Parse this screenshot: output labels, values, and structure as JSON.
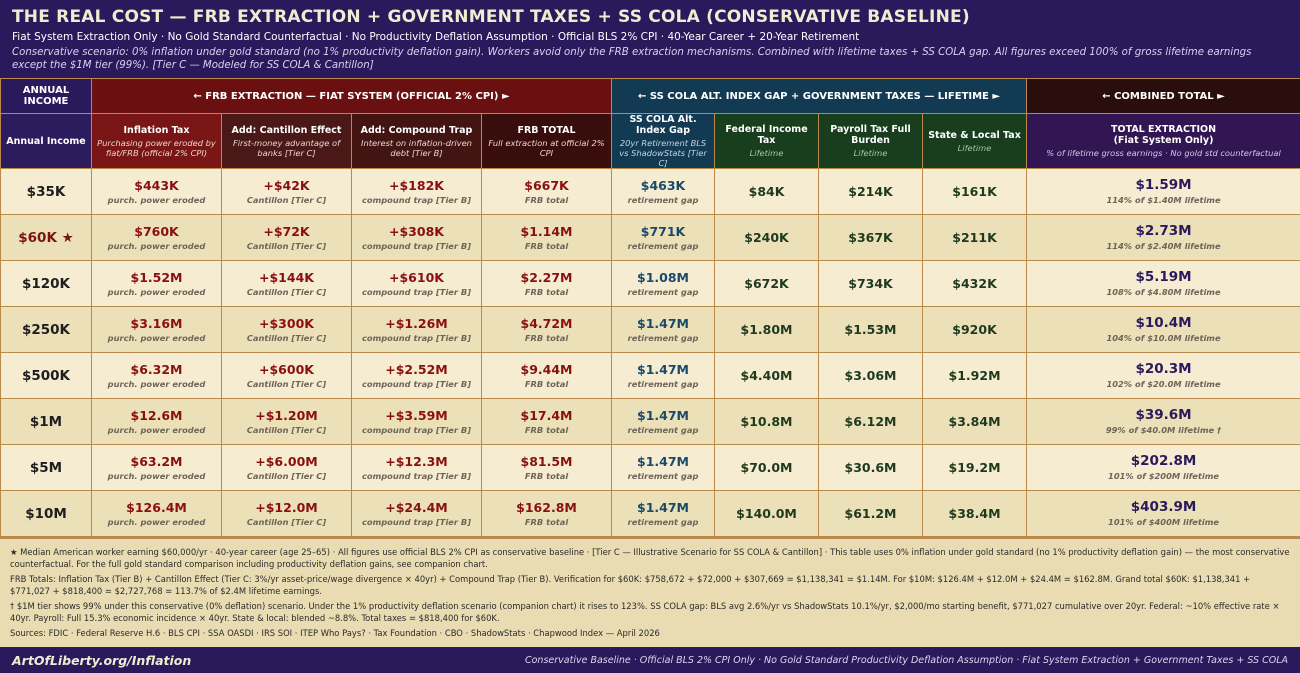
{
  "header": {
    "title": "THE REAL COST — FRB EXTRACTION + GOVERNMENT TAXES + SS COLA (CONSERVATIVE BASELINE)",
    "subtitle": "Fiat System Extraction Only · No Gold Standard Counterfactual · No Productivity Deflation Assumption · Official BLS 2% CPI · 40-Year Career + 20-Year Retirement",
    "description": "Conservative scenario: 0% inflation under gold standard (no 1% productivity deflation gain). Workers avoid only the FRB extraction mechanisms. Combined with lifetime taxes + SS COLA gap. All figures exceed 100% of gross lifetime earnings except the $1M tier (99%). [Tier C — Modeled for SS COLA & Cantillon]"
  },
  "groups": {
    "income": "ANNUAL INCOME",
    "frb": "← FRB EXTRACTION — FIAT SYSTEM (OFFICIAL 2% CPI) ►",
    "ss_tax": "← SS COLA ALT. INDEX GAP + GOVERNMENT TAXES — LIFETIME ►",
    "combined": "← COMBINED TOTAL ►"
  },
  "columns": {
    "income": {
      "title": "Annual Income",
      "desc": ""
    },
    "inflation": {
      "title": "Inflation Tax",
      "desc": "Purchasing power eroded by fiat/FRB (official 2% CPI)"
    },
    "cantillon": {
      "title": "Add: Cantillon Effect",
      "desc": "First-money advantage of banks [Tier C]"
    },
    "compound": {
      "title": "Add: Compound Trap",
      "desc": "Interest on inflation-driven debt [Tier B]"
    },
    "frb_total": {
      "title": "FRB TOTAL",
      "desc": "Full extraction at official 2% CPI"
    },
    "ss": {
      "title": "SS COLA Alt. Index Gap",
      "desc": "20yr Retirement BLS vs ShadowStats [Tier C]"
    },
    "federal": {
      "title": "Federal Income Tax",
      "desc": "Lifetime"
    },
    "payroll": {
      "title": "Payroll Tax Full Burden",
      "desc": "Lifetime"
    },
    "state": {
      "title": "State & Local Tax",
      "desc": "Lifetime"
    },
    "total": {
      "title": "TOTAL EXTRACTION",
      "title2": "(Fiat System Only)",
      "desc": "% of lifetime gross earnings · No gold std counterfactual"
    }
  },
  "sublabels": {
    "inflation": "purch. power eroded",
    "cantillon": "Cantillon [Tier C]",
    "compound": "compound trap [Tier B]",
    "frb_total": "FRB total",
    "ss": "retirement gap"
  },
  "rows": [
    {
      "income": "$35K",
      "inflation": "$443K",
      "cantillon": "+$42K",
      "compound": "+$182K",
      "frb_total": "$667K",
      "ss": "$463K",
      "federal": "$84K",
      "payroll": "$214K",
      "state": "$161K",
      "total": "$1.59M",
      "total_note": "114% of $1.40M lifetime"
    },
    {
      "income": "$60K ★",
      "inflation": "$760K",
      "cantillon": "+$72K",
      "compound": "+$308K",
      "frb_total": "$1.14M",
      "ss": "$771K",
      "federal": "$240K",
      "payroll": "$367K",
      "state": "$211K",
      "total": "$2.73M",
      "total_note": "114% of $2.40M lifetime"
    },
    {
      "income": "$120K",
      "inflation": "$1.52M",
      "cantillon": "+$144K",
      "compound": "+$610K",
      "frb_total": "$2.27M",
      "ss": "$1.08M",
      "federal": "$672K",
      "payroll": "$734K",
      "state": "$432K",
      "total": "$5.19M",
      "total_note": "108% of $4.80M lifetime"
    },
    {
      "income": "$250K",
      "inflation": "$3.16M",
      "cantillon": "+$300K",
      "compound": "+$1.26M",
      "frb_total": "$4.72M",
      "ss": "$1.47M",
      "federal": "$1.80M",
      "payroll": "$1.53M",
      "state": "$920K",
      "total": "$10.4M",
      "total_note": "104% of $10.0M lifetime"
    },
    {
      "income": "$500K",
      "inflation": "$6.32M",
      "cantillon": "+$600K",
      "compound": "+$2.52M",
      "frb_total": "$9.44M",
      "ss": "$1.47M",
      "federal": "$4.40M",
      "payroll": "$3.06M",
      "state": "$1.92M",
      "total": "$20.3M",
      "total_note": "102% of $20.0M lifetime"
    },
    {
      "income": "$1M",
      "inflation": "$12.6M",
      "cantillon": "+$1.20M",
      "compound": "+$3.59M",
      "frb_total": "$17.4M",
      "ss": "$1.47M",
      "federal": "$10.8M",
      "payroll": "$6.12M",
      "state": "$3.84M",
      "total": "$39.6M",
      "total_note": "99% of $40.0M lifetime †"
    },
    {
      "income": "$5M",
      "inflation": "$63.2M",
      "cantillon": "+$6.00M",
      "compound": "+$12.3M",
      "frb_total": "$81.5M",
      "ss": "$1.47M",
      "federal": "$70.0M",
      "payroll": "$30.6M",
      "state": "$19.2M",
      "total": "$202.8M",
      "total_note": "101% of $200M lifetime"
    },
    {
      "income": "$10M",
      "inflation": "$126.4M",
      "cantillon": "+$12.0M",
      "compound": "+$24.4M",
      "frb_total": "$162.8M",
      "ss": "$1.47M",
      "federal": "$140.0M",
      "payroll": "$61.2M",
      "state": "$38.4M",
      "total": "$403.9M",
      "total_note": "101% of $400M lifetime"
    }
  ],
  "notes": [
    "★ Median American worker earning $60,000/yr · 40-year career (age 25–65) · All figures use official BLS 2% CPI as conservative baseline · [Tier C — Illustrative Scenario for SS COLA & Cantillon] · This table uses 0% inflation under gold standard (no 1% productivity deflation gain) — the most conservative counterfactual. For the full gold standard comparison including productivity deflation gains, see companion chart.",
    "FRB Totals: Inflation Tax (Tier B) + Cantillon Effect (Tier C: 3%/yr asset-price/wage divergence × 40yr) + Compound Trap (Tier B). Verification for $60K: $758,672 + $72,000 + $307,669 = $1,138,341 = $1.14M. For $10M: $126.4M + $12.0M + $24.4M = $162.8M. Grand total $60K: $1,138,341 + $771,027 + $818,400 = $2,727,768 = 113.7% of $2.4M lifetime earnings.",
    "† $1M tier shows 99% under this conservative (0% deflation) scenario. Under the 1% productivity deflation scenario (companion chart) it rises to 123%. SS COLA gap: BLS avg 2.6%/yr vs ShadowStats 10.1%/yr, $2,000/mo starting benefit, $771,027 cumulative over 20yr. Federal: ~10% effective rate × 40yr. Payroll: Full 15.3% economic incidence × 40yr. State & local: blended ~8.8%. Total taxes = $818,400 for $60K.",
    "Sources: FDIC · Federal Reserve H.6 · BLS CPI · SSA OASDI · IRS SOI · ITEP Who Pays? · Tax Foundation · CBO · ShadowStats · Chapwood Index — April 2026"
  ],
  "footer": {
    "brand": "ArtOfLiberty.org/Inflation",
    "tagline": "Conservative Baseline · Official BLS 2% CPI Only · No Gold Standard Productivity Deflation Assumption · Fiat System Extraction + Government Taxes + SS COLA"
  }
}
